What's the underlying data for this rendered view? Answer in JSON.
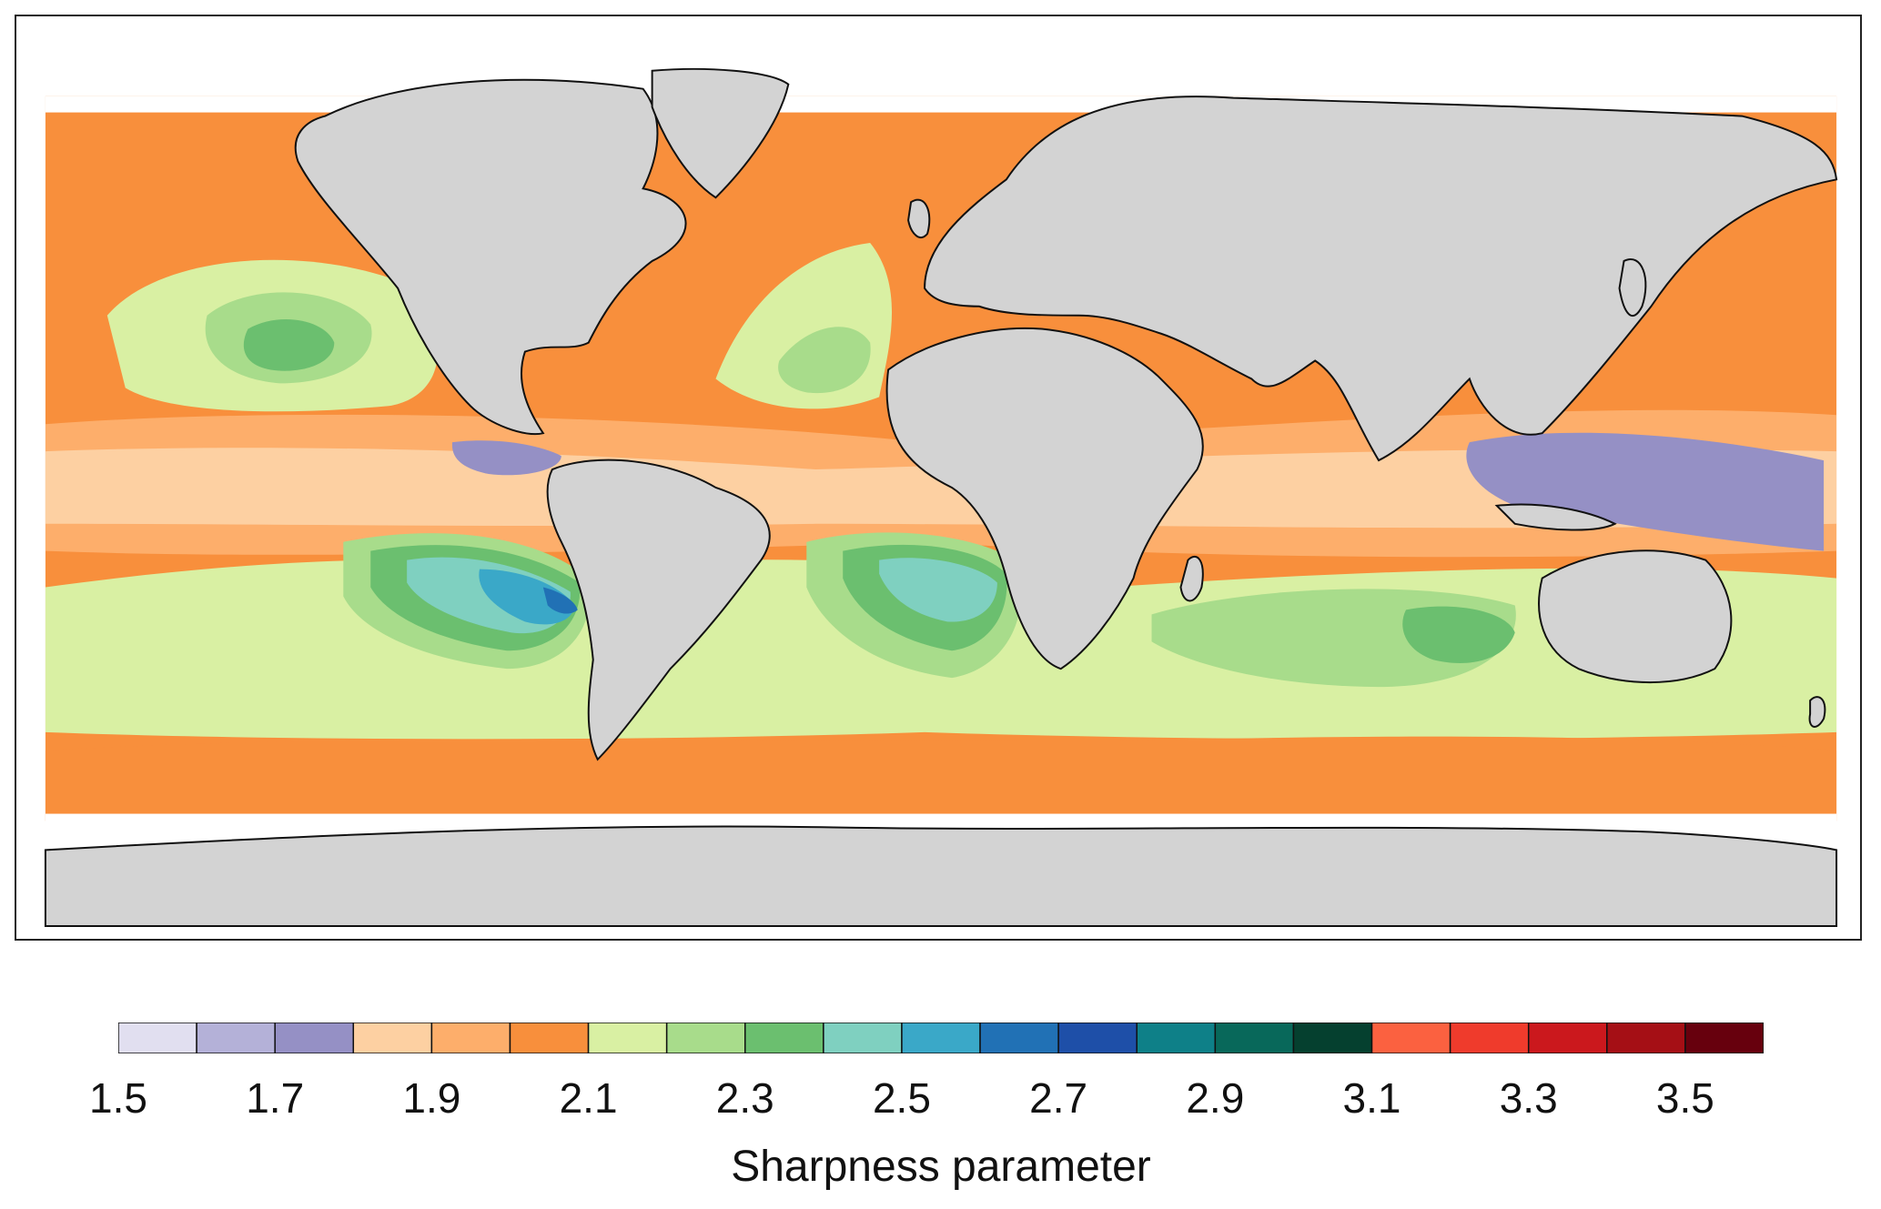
{
  "colorbar": {
    "label": "Sharpness parameter",
    "tick_labels": [
      "1.5",
      "1.7",
      "1.9",
      "2.1",
      "2.3",
      "2.5",
      "2.7",
      "2.9",
      "3.1",
      "3.3",
      "3.5"
    ],
    "range": [
      1.5,
      3.6
    ],
    "bin_width": 0.1,
    "colors": [
      "#e1dff0",
      "#b4b1d8",
      "#9590c5",
      "#fdd0a2",
      "#fdae6b",
      "#f88f3c",
      "#d9f0a3",
      "#a8dc8b",
      "#6bbf6f",
      "#7fd0c0",
      "#3aa8c8",
      "#2171b5",
      "#1e4fa8",
      "#0e8088",
      "#08685a",
      "#05402f",
      "#fb6140",
      "#ef3b2c",
      "#cb181d",
      "#a50f15",
      "#67000d"
    ]
  },
  "colors": {
    "land": "#d3d3d3",
    "coast": "#111111",
    "no_data": "#ffffff"
  }
}
